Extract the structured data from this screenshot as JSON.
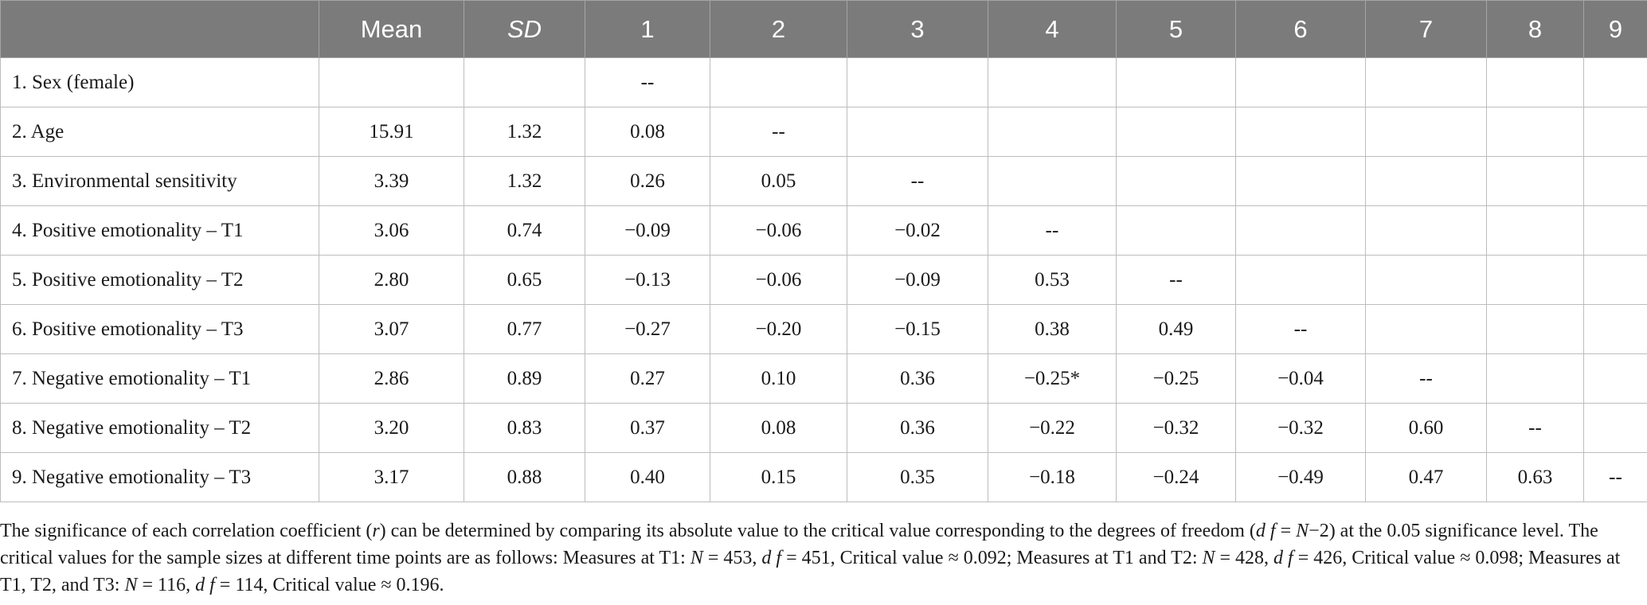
{
  "table": {
    "columns": [
      "",
      "Mean",
      "SD",
      "1",
      "2",
      "3",
      "4",
      "5",
      "6",
      "7",
      "8",
      "9"
    ],
    "rows": [
      {
        "label": "1.  Sex (female)",
        "cells": [
          "",
          "",
          "--",
          "",
          "",
          "",
          "",
          "",
          "",
          "",
          ""
        ]
      },
      {
        "label": "2.  Age",
        "cells": [
          "15.91",
          "1.32",
          "0.08",
          "--",
          "",
          "",
          "",
          "",
          "",
          "",
          ""
        ]
      },
      {
        "label": "3.  Environmental sensitivity",
        "cells": [
          "3.39",
          "1.32",
          "0.26",
          "0.05",
          "--",
          "",
          "",
          "",
          "",
          "",
          ""
        ]
      },
      {
        "label": "4.  Positive emotionality – T1",
        "cells": [
          "3.06",
          "0.74",
          "−0.09",
          "−0.06",
          "−0.02",
          "--",
          "",
          "",
          "",
          "",
          ""
        ]
      },
      {
        "label": "5.  Positive emotionality – T2",
        "cells": [
          "2.80",
          "0.65",
          "−0.13",
          "−0.06",
          "−0.09",
          "0.53",
          "--",
          "",
          "",
          "",
          ""
        ]
      },
      {
        "label": "6.  Positive emotionality – T3",
        "cells": [
          "3.07",
          "0.77",
          "−0.27",
          "−0.20",
          "−0.15",
          "0.38",
          "0.49",
          "--",
          "",
          "",
          ""
        ]
      },
      {
        "label": "7.  Negative emotionality – T1",
        "cells": [
          "2.86",
          "0.89",
          "0.27",
          "0.10",
          "0.36",
          "−0.25*",
          "−0.25",
          "−0.04",
          "--",
          "",
          ""
        ]
      },
      {
        "label": "8.  Negative emotionality – T2",
        "cells": [
          "3.20",
          "0.83",
          "0.37",
          "0.08",
          "0.36",
          "−0.22",
          "−0.32",
          "−0.32",
          "0.60",
          "--",
          ""
        ]
      },
      {
        "label": "9.  Negative emotionality – T3",
        "cells": [
          "3.17",
          "0.88",
          "0.40",
          "0.15",
          "0.35",
          "−0.18",
          "−0.24",
          "−0.49",
          "0.47",
          "0.63",
          "--"
        ]
      }
    ]
  },
  "note": {
    "p1": "The significance of each correlation coefficient (",
    "r": "r",
    "p2": ") can be determined by comparing its absolute value to the critical value corresponding to the degrees of freedom (",
    "df1": "d f",
    "p3": " = ",
    "n1": "N",
    "p4": "−2) at the 0.05 significance level. The critical values for the sample sizes at different time points are as follows: Measures at T1: ",
    "n2": "N",
    "p5": " = 453, ",
    "df2": "d f",
    "p6": " = 451, Critical value ≈ 0.092; Measures at T1 and T2: ",
    "n3": "N",
    "p7": " = 428, ",
    "df3": "d f",
    "p8": " = 426, Critical value ≈ 0.098; Measures at T1, T2, and T3: ",
    "n4": "N",
    "p9": " = 116, ",
    "df4": "d f",
    "p10": " = 114, Critical value ≈ 0.196."
  }
}
